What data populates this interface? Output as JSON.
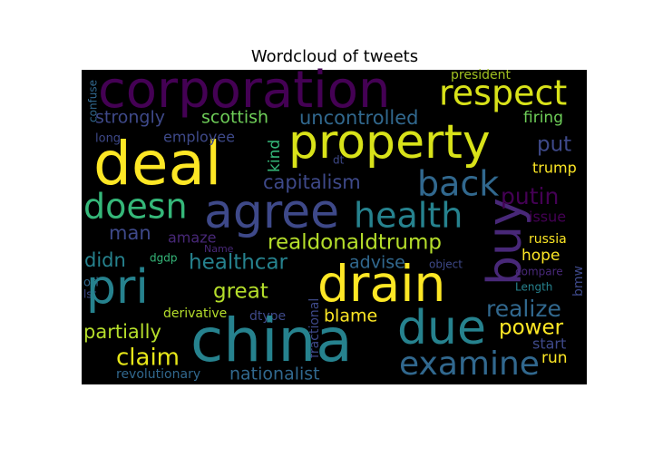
{
  "chart_data": {
    "type": "wordcloud",
    "title": "Wordcloud of tweets",
    "background": "#000000",
    "words": [
      {
        "text": "corporation",
        "color": "#440154"
      },
      {
        "text": "respect",
        "color": "#d8e219"
      },
      {
        "text": "president",
        "color": "#a0c020"
      },
      {
        "text": "confuse",
        "color": "#31688e"
      },
      {
        "text": "strongly",
        "color": "#3e4989"
      },
      {
        "text": "scottish",
        "color": "#6ece58"
      },
      {
        "text": "uncontrolled",
        "color": "#31688e"
      },
      {
        "text": "firing",
        "color": "#6ece58"
      },
      {
        "text": "property",
        "color": "#d8e219"
      },
      {
        "text": "deal",
        "color": "#fde725"
      },
      {
        "text": "employee",
        "color": "#3e4989"
      },
      {
        "text": "long",
        "color": "#3e4989"
      },
      {
        "text": "dt",
        "color": "#3e4989"
      },
      {
        "text": "kind",
        "color": "#35b779"
      },
      {
        "text": "put",
        "color": "#3e4989"
      },
      {
        "text": "trump",
        "color": "#fde725"
      },
      {
        "text": "capitalism",
        "color": "#3e4989"
      },
      {
        "text": "back",
        "color": "#31688e"
      },
      {
        "text": "buy",
        "color": "#482878"
      },
      {
        "text": "putin",
        "color": "#440154"
      },
      {
        "text": "doesn",
        "color": "#35b779"
      },
      {
        "text": "agree",
        "color": "#3e4989"
      },
      {
        "text": "health",
        "color": "#26828e"
      },
      {
        "text": "issue",
        "color": "#440154"
      },
      {
        "text": "man",
        "color": "#3e4989"
      },
      {
        "text": "amaze",
        "color": "#482878"
      },
      {
        "text": "realdonaldtrump",
        "color": "#b5de2b"
      },
      {
        "text": "russia",
        "color": "#fde725"
      },
      {
        "text": "Name",
        "color": "#482878"
      },
      {
        "text": "didn",
        "color": "#26828e"
      },
      {
        "text": "dgdp",
        "color": "#35b779"
      },
      {
        "text": "healthcar",
        "color": "#26828e"
      },
      {
        "text": "advise",
        "color": "#31688e"
      },
      {
        "text": "object",
        "color": "#3e4989"
      },
      {
        "text": "hope",
        "color": "#fde725"
      },
      {
        "text": "compare",
        "color": "#482878"
      },
      {
        "text": "bmw",
        "color": "#3e4989"
      },
      {
        "text": "ori",
        "color": "#31688e"
      },
      {
        "text": "lst",
        "color": "#3e4989"
      },
      {
        "text": "pri",
        "color": "#26828e"
      },
      {
        "text": "great",
        "color": "#b5de2b"
      },
      {
        "text": "fractional",
        "color": "#3e4989"
      },
      {
        "text": "drain",
        "color": "#fde725"
      },
      {
        "text": "Length",
        "color": "#26828e"
      },
      {
        "text": "realize",
        "color": "#31688e"
      },
      {
        "text": "derivative",
        "color": "#b5de2b"
      },
      {
        "text": "dtype",
        "color": "#3e4989"
      },
      {
        "text": "blame",
        "color": "#fde725"
      },
      {
        "text": "due",
        "color": "#26828e"
      },
      {
        "text": "partially",
        "color": "#b5de2b"
      },
      {
        "text": "power",
        "color": "#fde725"
      },
      {
        "text": "china",
        "color": "#26828e"
      },
      {
        "text": "start",
        "color": "#3e4989"
      },
      {
        "text": "claim",
        "color": "#e6e619"
      },
      {
        "text": "examine",
        "color": "#31688e"
      },
      {
        "text": "run",
        "color": "#fde725"
      },
      {
        "text": "revolutionary",
        "color": "#31688e"
      },
      {
        "text": "nationalist",
        "color": "#31688e"
      }
    ]
  }
}
